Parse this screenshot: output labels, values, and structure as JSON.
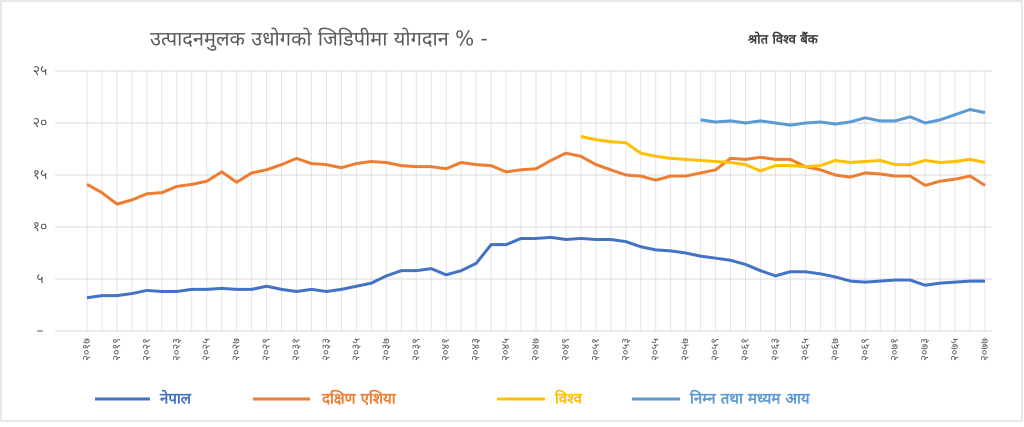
{
  "chart_data": {
    "type": "line",
    "title": "उत्पादनमुलक उधोगको जिडिपीमा योगदान % -",
    "source": "श्रोत विश्व बैंक",
    "categories": [
      "२०१७",
      null,
      "२०१९",
      null,
      "२०२१",
      null,
      "२०२३",
      null,
      "२०२५",
      null,
      "२०२७",
      null,
      "२०२९",
      null,
      "२०३१",
      null,
      "२०३३",
      null,
      "२०३५",
      null,
      "२०३७",
      null,
      "२०३९",
      null,
      "२०४१",
      null,
      "२०४३",
      null,
      "२०४५",
      null,
      "२०४७",
      null,
      "२०४९",
      null,
      "२०५१",
      null,
      "२०५३",
      null,
      "२०५५",
      null,
      "२०५७",
      null,
      "२०५९",
      null,
      "२०६१",
      null,
      "२०६३",
      null,
      "२०६५",
      null,
      "२०६७",
      null,
      "२०६९",
      null,
      "२०७१",
      null,
      "२०७३",
      null,
      "२०७५",
      null,
      "२०७७"
    ],
    "series": [
      {
        "name": "नेपाल",
        "color": "#4472c4",
        "values": [
          3.2,
          3.4,
          3.4,
          3.6,
          3.9,
          3.8,
          3.8,
          4.0,
          4.0,
          4.1,
          4.0,
          4.0,
          4.3,
          4.0,
          3.8,
          4.0,
          3.8,
          4.0,
          4.3,
          4.6,
          5.3,
          5.8,
          5.8,
          6.0,
          5.4,
          5.8,
          6.5,
          8.3,
          8.3,
          8.9,
          8.9,
          9.0,
          8.8,
          8.9,
          8.8,
          8.8,
          8.6,
          8.1,
          7.8,
          7.7,
          7.5,
          7.2,
          7.0,
          6.8,
          6.4,
          5.8,
          5.3,
          5.7,
          5.7,
          5.5,
          5.2,
          4.8,
          4.7,
          4.8,
          4.9,
          4.9,
          4.4,
          4.6,
          4.7,
          4.8,
          4.8
        ]
      },
      {
        "name": "दक्षिण एशिया",
        "color": "#ed7d31",
        "values": [
          14.1,
          13.3,
          12.2,
          12.6,
          13.2,
          13.3,
          13.9,
          14.1,
          14.4,
          15.3,
          14.3,
          15.2,
          15.5,
          16.0,
          16.6,
          16.1,
          16.0,
          15.7,
          16.1,
          16.3,
          16.2,
          15.9,
          15.8,
          15.8,
          15.6,
          16.2,
          16.0,
          15.9,
          15.3,
          15.5,
          15.6,
          16.4,
          17.1,
          16.8,
          16.0,
          15.5,
          15.0,
          14.9,
          14.5,
          14.9,
          14.9,
          15.2,
          15.5,
          16.6,
          16.5,
          16.7,
          16.5,
          16.5,
          15.8,
          15.5,
          15.0,
          14.8,
          15.2,
          15.1,
          14.9,
          14.9,
          14.0,
          14.4,
          14.6,
          14.9,
          14.0
        ]
      },
      {
        "name": "विश्व",
        "color": "#ffc000",
        "values": [
          null,
          null,
          null,
          null,
          null,
          null,
          null,
          null,
          null,
          null,
          null,
          null,
          null,
          null,
          null,
          null,
          null,
          null,
          null,
          null,
          null,
          null,
          null,
          null,
          null,
          null,
          null,
          null,
          null,
          null,
          null,
          null,
          null,
          18.7,
          18.4,
          18.2,
          18.1,
          17.1,
          16.8,
          16.6,
          16.5,
          16.4,
          16.3,
          16.2,
          16.0,
          15.4,
          15.9,
          15.9,
          15.8,
          15.9,
          16.4,
          16.2,
          16.3,
          16.4,
          16.0,
          16.0,
          16.4,
          16.2,
          16.3,
          16.5,
          16.2
        ]
      },
      {
        "name": "निम्न तथा मध्यम आय",
        "color": "#5b9bd5",
        "values": [
          null,
          null,
          null,
          null,
          null,
          null,
          null,
          null,
          null,
          null,
          null,
          null,
          null,
          null,
          null,
          null,
          null,
          null,
          null,
          null,
          null,
          null,
          null,
          null,
          null,
          null,
          null,
          null,
          null,
          null,
          null,
          null,
          null,
          null,
          null,
          null,
          null,
          null,
          null,
          null,
          null,
          20.3,
          20.1,
          20.2,
          20.0,
          20.2,
          20.0,
          19.8,
          20.0,
          20.1,
          19.9,
          20.1,
          20.5,
          20.2,
          20.2,
          20.6,
          20.0,
          20.3,
          20.8,
          21.3,
          21.0
        ]
      }
    ],
    "ylim": [
      0,
      25
    ],
    "yticks": [
      {
        "value": 0,
        "label": "–"
      },
      {
        "value": 5,
        "label": "५"
      },
      {
        "value": 10,
        "label": "१०"
      },
      {
        "value": 15,
        "label": "१५"
      },
      {
        "value": 20,
        "label": "२०"
      },
      {
        "value": 25,
        "label": "२५"
      }
    ],
    "grid": true,
    "legend": "bottom"
  }
}
